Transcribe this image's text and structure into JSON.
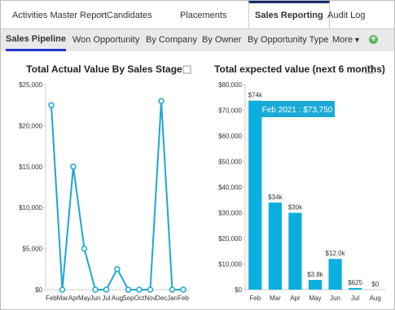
{
  "tabs": [
    "Activities Master Report",
    "Candidates",
    "Placements",
    "Sales Reporting",
    "Audit Log"
  ],
  "subtabs": [
    "Sales Pipeline",
    "Won Opportunity",
    "By Company",
    "By Owner",
    "By Opportunity Type",
    "More"
  ],
  "chart_data": [
    {
      "type": "line",
      "title": "Total Actual Value By Sales Stage",
      "color": "#1ea5d6",
      "categories": [
        "Feb",
        "Mar",
        "Apr",
        "May",
        "Jun",
        "Jul",
        "Aug",
        "Sep",
        "Oct",
        "Nov",
        "Dec",
        "Jan",
        "Feb"
      ],
      "values": [
        22500,
        0,
        15000,
        5000,
        0,
        0,
        2500,
        0,
        0,
        0,
        23000,
        0,
        0
      ],
      "ylim": [
        0,
        25000
      ],
      "yticks": [
        {
          "value": 0,
          "label": "$0"
        },
        {
          "value": 5000,
          "label": "$5,000"
        },
        {
          "value": 10000,
          "label": "$10,000"
        },
        {
          "value": 15000,
          "label": "$15,000"
        },
        {
          "value": 20000,
          "label": "$20,000"
        },
        {
          "value": 25000,
          "label": "$25,000"
        }
      ],
      "grid": false
    },
    {
      "type": "bar",
      "title": "Total expected value (next 6 months)",
      "color": "#0aafe0",
      "categories": [
        "Feb",
        "Mar",
        "Apr",
        "May",
        "Jun",
        "Jul",
        "Aug"
      ],
      "values": [
        73750,
        34000,
        30000,
        3800,
        12000,
        625,
        0
      ],
      "value_labels": [
        "$74k",
        "$34k",
        "$30k",
        "$3.8k",
        "$12.0k",
        "$625",
        "$0"
      ],
      "ylim": [
        0,
        80000
      ],
      "yticks": [
        {
          "value": 0,
          "label": "$0"
        },
        {
          "value": 10000,
          "label": "$10,000"
        },
        {
          "value": 20000,
          "label": "$20,000"
        },
        {
          "value": 30000,
          "label": "$30,000"
        },
        {
          "value": 40000,
          "label": "$40,000"
        },
        {
          "value": 50000,
          "label": "$50,000"
        },
        {
          "value": 60000,
          "label": "$60,000"
        },
        {
          "value": 70000,
          "label": "$70,000"
        },
        {
          "value": 80000,
          "label": "$80,000"
        }
      ],
      "grid": false,
      "tooltip": "Feb 2021 : $73,750"
    }
  ]
}
